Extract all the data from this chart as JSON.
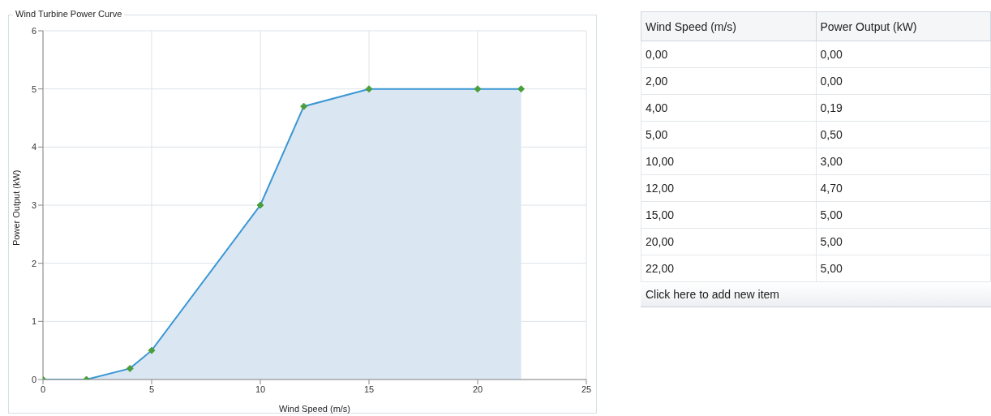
{
  "chart_data": [
    {
      "type": "area",
      "title": "Wind Turbine Power Curve",
      "xlabel": "Wind Speed (m/s)",
      "ylabel": "Power Output (kW)",
      "x": [
        0,
        2,
        4,
        5,
        10,
        12,
        15,
        20,
        22
      ],
      "series": [
        {
          "color": "#3b97d3",
          "values": [
            0,
            0,
            0.19,
            0.5,
            3,
            4.7,
            5,
            5,
            5
          ]
        }
      ],
      "xlim": [
        0,
        25
      ],
      "xticks": [
        0,
        5,
        10,
        15,
        20,
        25
      ],
      "ylim": [
        0,
        6
      ],
      "yticks": [
        0,
        1,
        2,
        3,
        4,
        5,
        6
      ],
      "grid": true,
      "marker": "diamond"
    },
    {
      "type": "other",
      "annotations": [
        "Wind Speed (m/s)",
        "Power Output (kW)",
        "0,00",
        "0,00",
        "2,00",
        "0,00",
        "4,00",
        "0,19",
        "5,00",
        "0,50",
        "10,00",
        "3,00",
        "12,00",
        "4,70",
        "15,00",
        "5,00",
        "20,00",
        "5,00",
        "22,00",
        "5,00",
        "Click here to add new item"
      ]
    }
  ]
}
